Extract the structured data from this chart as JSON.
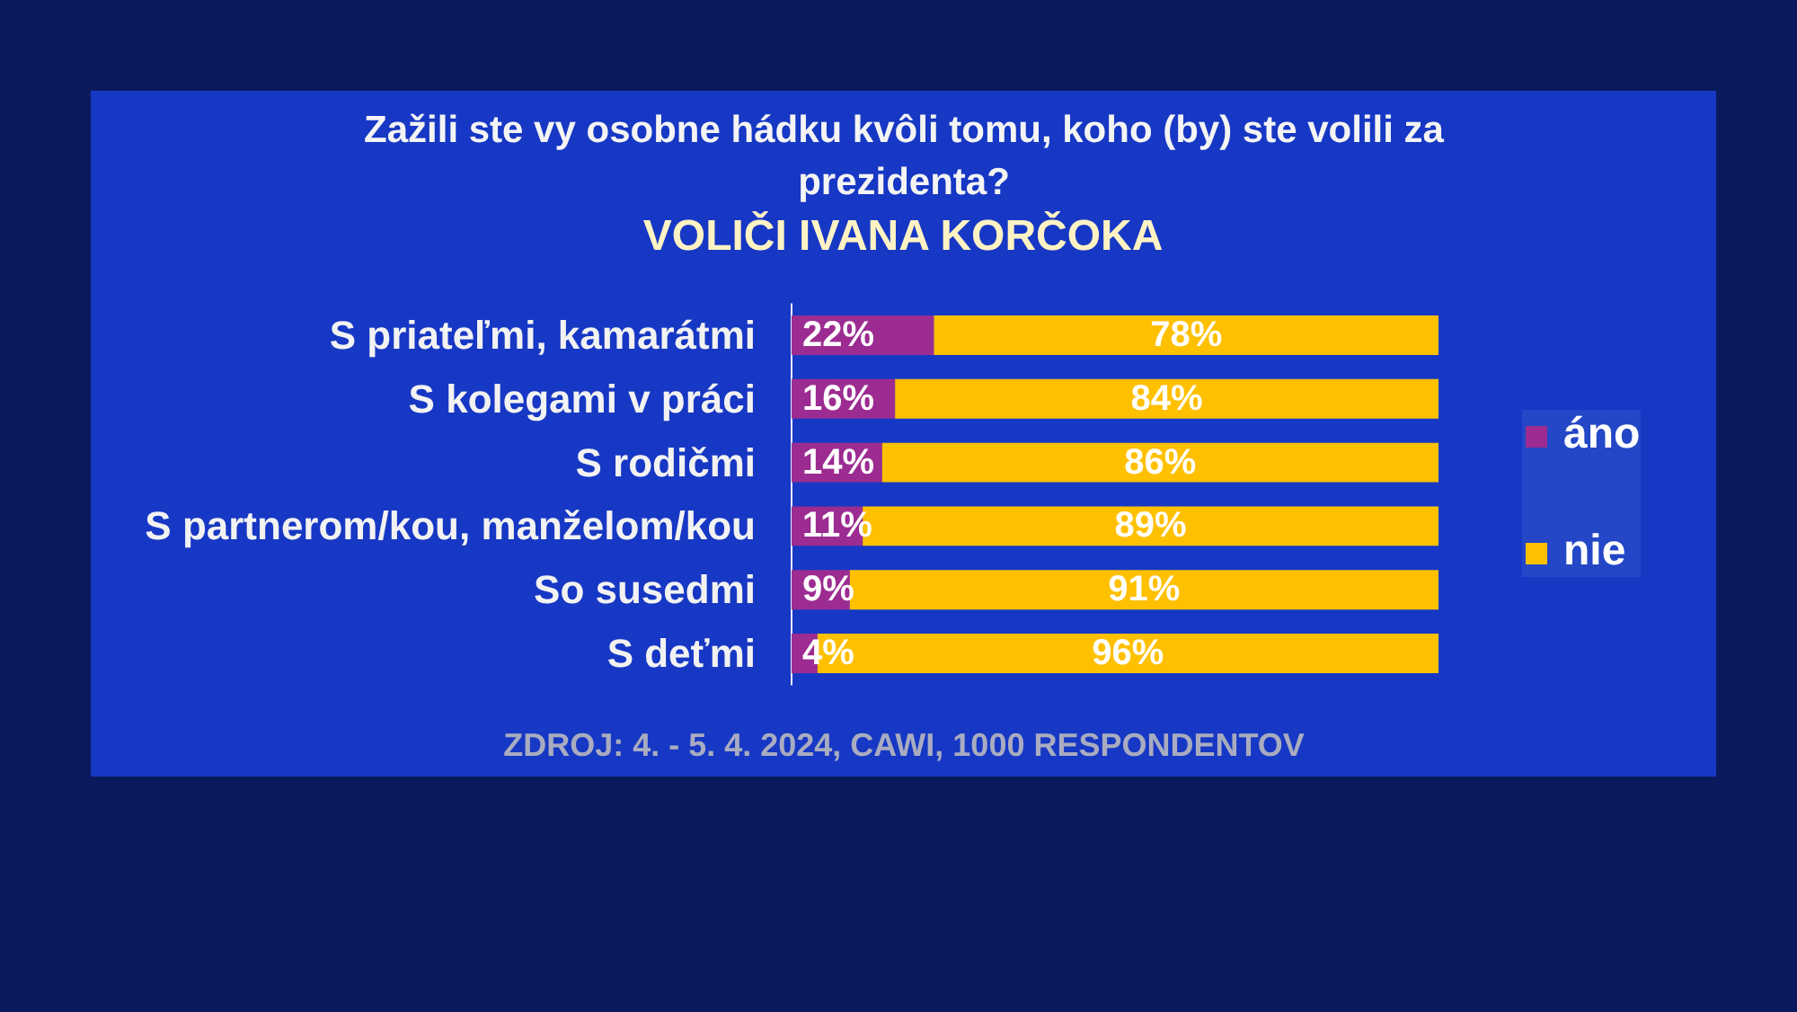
{
  "chart_data": {
    "type": "bar",
    "orientation": "horizontal",
    "stacked": true,
    "title": "Zažili ste vy osobne hádku kvôli tomu, koho (by) ste volili za prezidenta?",
    "subtitle": "VOLIČI IVANA KORČOKA",
    "categories": [
      "S priateľmi, kamarátmi",
      "S kolegami v práci",
      "S rodičmi",
      "S partnerom/kou, manželom/kou",
      "So susedmi",
      "S deťmi"
    ],
    "series": [
      {
        "name": "áno",
        "color": "#9c2c91",
        "values": [
          22,
          16,
          14,
          11,
          9,
          4
        ],
        "value_labels": [
          "22%",
          "16%",
          "14%",
          "11%",
          "9%",
          "4%"
        ]
      },
      {
        "name": "nie",
        "color": "#ffc000",
        "values": [
          78,
          84,
          86,
          89,
          91,
          96
        ],
        "value_labels": [
          "78%",
          "84%",
          "86%",
          "89%",
          "91%",
          "96%"
        ]
      }
    ],
    "legend": "right",
    "grid": false,
    "tick_labels": "y",
    "annotations": [
      "ZDROJ: 4. - 5. 4. 2024, CAWI, 1000 RESPONDENTOV"
    ]
  }
}
